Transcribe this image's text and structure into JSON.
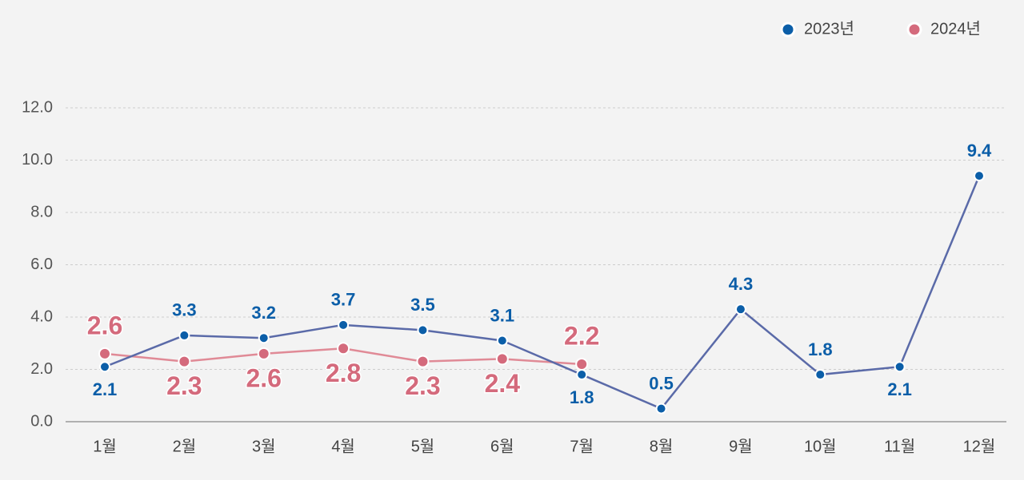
{
  "chart_data": {
    "type": "line",
    "categories": [
      "1월",
      "2월",
      "3월",
      "4월",
      "5월",
      "6월",
      "7월",
      "8월",
      "9월",
      "10월",
      "11월",
      "12월"
    ],
    "series": [
      {
        "name": "2023년",
        "color": "#0b5ea8",
        "values": [
          2.1,
          3.3,
          3.2,
          3.7,
          3.5,
          3.1,
          1.8,
          0.5,
          4.3,
          1.8,
          2.1,
          9.4
        ]
      },
      {
        "name": "2024년",
        "color": "#d46a7c",
        "values": [
          2.6,
          2.3,
          2.6,
          2.8,
          2.3,
          2.4,
          2.2,
          null,
          null,
          null,
          null,
          null
        ]
      }
    ],
    "ylim": [
      0,
      12
    ],
    "yticks": [
      {
        "value": 0,
        "label": "0.0"
      },
      {
        "value": 2,
        "label": "2.0"
      },
      {
        "value": 4,
        "label": "4.0"
      },
      {
        "value": 6,
        "label": "6.0"
      },
      {
        "value": 8,
        "label": "8.0"
      },
      {
        "value": 10,
        "label": "10.0"
      },
      {
        "value": 12,
        "label": "12.0"
      }
    ],
    "grid": true,
    "legend": "top-right"
  }
}
